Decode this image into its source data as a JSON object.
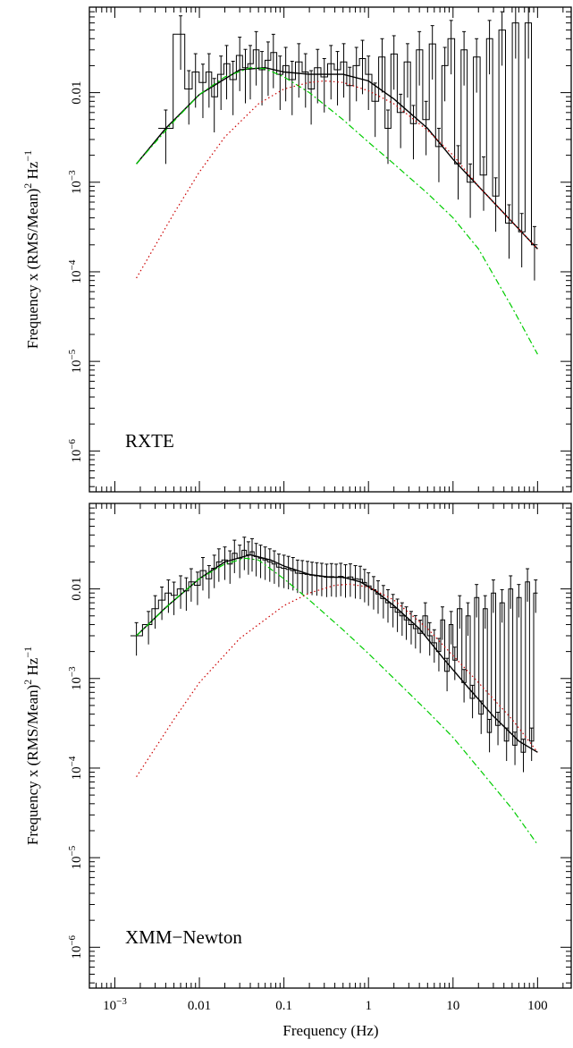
{
  "chart_data": [
    {
      "type": "line",
      "panel_label": "RXTE",
      "xlabel": "Frequency (Hz)",
      "ylabel_main": "Frequency x (RMS/Mean)",
      "ylabel_sup1": "2",
      "ylabel_hz": "Hz",
      "ylabel_sup2": "−1",
      "xscale": "log",
      "yscale": "log",
      "xlim": [
        0.0005,
        250
      ],
      "ylim": [
        3.5e-07,
        0.09
      ],
      "y_ticks": [
        {
          "value": 0.01,
          "base": "0.01",
          "exp": ""
        },
        {
          "value": 0.001,
          "base": "10",
          "exp": "−3"
        },
        {
          "value": 0.0001,
          "base": "10",
          "exp": "−4"
        },
        {
          "value": 1e-05,
          "base": "10",
          "exp": "−5"
        },
        {
          "value": 1e-06,
          "base": "10",
          "exp": "−6"
        }
      ],
      "x_ticks": [],
      "series": [
        {
          "role": "total_model",
          "color": "#000000",
          "x": [
            0.0018,
            0.004,
            0.01,
            0.03,
            0.06,
            0.1,
            0.2,
            0.5,
            1,
            2,
            5,
            10,
            20,
            50,
            100
          ],
          "y": [
            0.0016,
            0.004,
            0.0095,
            0.018,
            0.019,
            0.017,
            0.016,
            0.016,
            0.0135,
            0.0085,
            0.004,
            0.0018,
            0.0009,
            0.00036,
            0.00018
          ]
        },
        {
          "role": "low_frequency_component",
          "color": "#00cc00",
          "x": [
            0.0018,
            0.005,
            0.01,
            0.02,
            0.04,
            0.06,
            0.1,
            0.2,
            0.5,
            1,
            2,
            5,
            10,
            20,
            50,
            100
          ],
          "y": [
            0.0016,
            0.0048,
            0.0095,
            0.015,
            0.019,
            0.0185,
            0.015,
            0.01,
            0.005,
            0.0028,
            0.0016,
            0.00075,
            0.0004,
            0.00018,
            4e-05,
            1.2e-05
          ]
        },
        {
          "role": "high_frequency_component",
          "color": "#cc0000",
          "x": [
            0.0018,
            0.005,
            0.01,
            0.02,
            0.05,
            0.1,
            0.2,
            0.3,
            0.5,
            1,
            2,
            5,
            10,
            20,
            50,
            100
          ],
          "y": [
            8.5e-05,
            0.00045,
            0.0013,
            0.0032,
            0.0075,
            0.011,
            0.013,
            0.0135,
            0.013,
            0.0105,
            0.0075,
            0.0038,
            0.002,
            0.0009,
            0.00036,
            0.00018
          ]
        }
      ],
      "data_points": {
        "x": [
          0.004,
          0.006,
          0.0075,
          0.009,
          0.011,
          0.013,
          0.015,
          0.018,
          0.021,
          0.025,
          0.03,
          0.035,
          0.04,
          0.047,
          0.055,
          0.065,
          0.075,
          0.09,
          0.105,
          0.125,
          0.15,
          0.18,
          0.21,
          0.25,
          0.3,
          0.36,
          0.43,
          0.51,
          0.6,
          0.72,
          0.85,
          1.0,
          1.2,
          1.45,
          1.7,
          2.0,
          2.4,
          2.9,
          3.4,
          4.0,
          4.8,
          5.7,
          6.8,
          8.0,
          9.5,
          11.5,
          13.5,
          16,
          19,
          23,
          27,
          32,
          38,
          46,
          55,
          65,
          78,
          92
        ],
        "y": [
          0.004,
          0.045,
          0.011,
          0.017,
          0.013,
          0.017,
          0.009,
          0.016,
          0.021,
          0.014,
          0.026,
          0.019,
          0.021,
          0.03,
          0.018,
          0.023,
          0.028,
          0.016,
          0.02,
          0.014,
          0.022,
          0.017,
          0.011,
          0.019,
          0.015,
          0.021,
          0.018,
          0.022,
          0.012,
          0.02,
          0.024,
          0.016,
          0.008,
          0.025,
          0.004,
          0.027,
          0.006,
          0.022,
          0.0045,
          0.03,
          0.005,
          0.035,
          0.0025,
          0.02,
          0.04,
          0.0016,
          0.03,
          0.001,
          0.025,
          0.0012,
          0.04,
          0.0007,
          0.05,
          0.00035,
          0.06,
          0.00028,
          0.06,
          0.0002
        ],
        "err_frac": 0.6
      }
    },
    {
      "type": "line",
      "panel_label": "XMM−Newton",
      "xlabel": "Frequency (Hz)",
      "ylabel_main": "Frequency x (RMS/Mean)",
      "ylabel_sup1": "2",
      "ylabel_hz": "Hz",
      "ylabel_sup2": "−1",
      "xscale": "log",
      "yscale": "log",
      "xlim": [
        0.0005,
        250
      ],
      "ylim": [
        3.5e-07,
        0.09
      ],
      "y_ticks": [
        {
          "value": 0.01,
          "base": "0.01",
          "exp": ""
        },
        {
          "value": 0.001,
          "base": "10",
          "exp": "−3"
        },
        {
          "value": 0.0001,
          "base": "10",
          "exp": "−4"
        },
        {
          "value": 1e-05,
          "base": "10",
          "exp": "−5"
        },
        {
          "value": 1e-06,
          "base": "10",
          "exp": "−6"
        }
      ],
      "x_ticks": [
        {
          "value": 0.001,
          "base": "10",
          "exp": "−3"
        },
        {
          "value": 0.01,
          "base": "0.01",
          "exp": ""
        },
        {
          "value": 0.1,
          "base": "0.1",
          "exp": ""
        },
        {
          "value": 1,
          "base": "1",
          "exp": ""
        },
        {
          "value": 10,
          "base": "10",
          "exp": ""
        },
        {
          "value": 100,
          "base": "100",
          "exp": ""
        }
      ],
      "series": [
        {
          "role": "total_model",
          "color": "#000000",
          "x": [
            0.0018,
            0.004,
            0.01,
            0.02,
            0.04,
            0.07,
            0.1,
            0.2,
            0.35,
            0.5,
            0.8,
            1.2,
            2,
            4,
            8,
            15,
            30,
            60,
            100
          ],
          "y": [
            0.003,
            0.0062,
            0.013,
            0.02,
            0.024,
            0.021,
            0.018,
            0.0145,
            0.0135,
            0.0135,
            0.012,
            0.0095,
            0.0065,
            0.0036,
            0.0016,
            0.0008,
            0.00038,
            0.0002,
            0.00015
          ]
        },
        {
          "role": "low_frequency_component",
          "color": "#00cc00",
          "x": [
            0.0018,
            0.005,
            0.01,
            0.02,
            0.035,
            0.05,
            0.1,
            0.2,
            0.5,
            1,
            2,
            5,
            10,
            20,
            50,
            100
          ],
          "y": [
            0.003,
            0.0075,
            0.013,
            0.019,
            0.022,
            0.021,
            0.013,
            0.0075,
            0.0035,
            0.0019,
            0.001,
            0.00043,
            0.00022,
            0.0001,
            3.5e-05,
            1.4e-05
          ]
        },
        {
          "role": "high_frequency_component",
          "color": "#cc0000",
          "x": [
            0.0018,
            0.005,
            0.01,
            0.03,
            0.1,
            0.2,
            0.4,
            0.6,
            1,
            2,
            5,
            10,
            20,
            50,
            100
          ],
          "y": [
            8e-05,
            0.00035,
            0.0009,
            0.0028,
            0.0065,
            0.009,
            0.011,
            0.0113,
            0.0105,
            0.0075,
            0.0036,
            0.0018,
            0.0009,
            0.00035,
            0.00015
          ]
        }
      ],
      "data_points": {
        "x": [
          0.0018,
          0.0025,
          0.003,
          0.0036,
          0.0043,
          0.005,
          0.006,
          0.007,
          0.008,
          0.0095,
          0.011,
          0.013,
          0.015,
          0.017,
          0.02,
          0.023,
          0.026,
          0.03,
          0.034,
          0.038,
          0.042,
          0.047,
          0.053,
          0.06,
          0.068,
          0.077,
          0.087,
          0.1,
          0.113,
          0.128,
          0.145,
          0.165,
          0.19,
          0.215,
          0.245,
          0.28,
          0.32,
          0.365,
          0.415,
          0.47,
          0.535,
          0.61,
          0.7,
          0.8,
          0.9,
          1.0,
          1.15,
          1.3,
          1.5,
          1.7,
          1.95,
          2.2,
          2.5,
          2.8,
          3.2,
          3.6,
          4.1,
          4.7,
          5.3,
          6.0,
          6.8,
          7.5,
          8.5,
          9.5,
          10.5,
          12,
          13.5,
          15,
          17,
          19,
          21.5,
          24,
          27,
          30,
          34,
          38,
          43,
          48,
          54,
          60,
          68,
          76,
          85,
          95
        ],
        "y": [
          0.003,
          0.004,
          0.006,
          0.0075,
          0.009,
          0.0085,
          0.01,
          0.0095,
          0.012,
          0.011,
          0.016,
          0.013,
          0.017,
          0.02,
          0.021,
          0.019,
          0.025,
          0.022,
          0.027,
          0.024,
          0.026,
          0.023,
          0.022,
          0.021,
          0.02,
          0.019,
          0.0175,
          0.017,
          0.0165,
          0.016,
          0.015,
          0.0148,
          0.0145,
          0.0142,
          0.014,
          0.0138,
          0.0135,
          0.0137,
          0.0135,
          0.0138,
          0.0133,
          0.0136,
          0.013,
          0.0128,
          0.0118,
          0.0108,
          0.0098,
          0.0088,
          0.0078,
          0.007,
          0.0062,
          0.0055,
          0.005,
          0.0045,
          0.004,
          0.0036,
          0.0032,
          0.005,
          0.003,
          0.0025,
          0.002,
          0.0045,
          0.0012,
          0.004,
          0.0016,
          0.006,
          0.0009,
          0.005,
          0.0006,
          0.008,
          0.0004,
          0.006,
          0.00025,
          0.009,
          0.0003,
          0.007,
          0.0002,
          0.01,
          0.00018,
          0.008,
          0.00015,
          0.012,
          0.0002,
          0.009
        ],
        "err_frac": 0.4
      }
    }
  ]
}
